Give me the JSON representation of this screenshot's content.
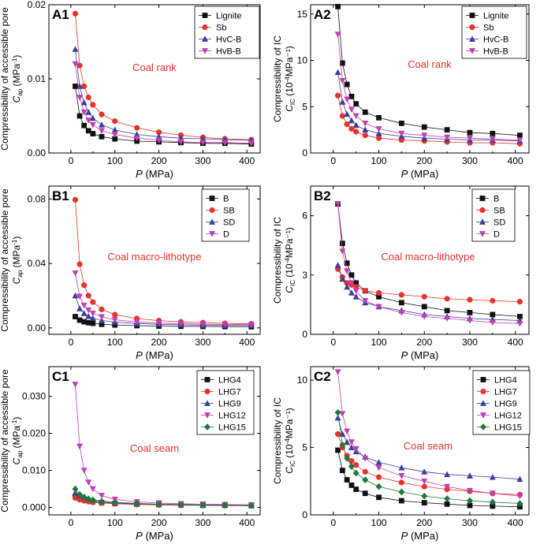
{
  "figure": {
    "colors": {
      "black": "#111111",
      "red": "#e8332a",
      "blue": "#3b3f9e",
      "magenta": "#c13fb5",
      "green": "#1f7a3a",
      "note": "#e8332a"
    },
    "panels": [
      {
        "id": "A1",
        "panel_label": "A1",
        "annotation": "Coal rank",
        "ylabel_line1": "Compressibility of accessible pore",
        "ylabel_sym": "C",
        "ylabel_sub": "ap",
        "ylabel_unit": " (MPa",
        "ylabel_exp": "-1",
        "ylabel_close": ")",
        "xlabel_sym": "P",
        "xlabel_unit": " (MPa)",
        "xlim": [
          -50,
          430
        ],
        "ylim": [
          0,
          0.02
        ],
        "xticks": [
          "0",
          "100",
          "200",
          "300",
          "400"
        ],
        "xtick_values": [
          0,
          100,
          200,
          300,
          400
        ],
        "yticks": [
          "0.00",
          "0.01",
          "0.02"
        ],
        "ytick_values": [
          0,
          0.01,
          0.02
        ]
      },
      {
        "id": "A2",
        "panel_label": "A2",
        "annotation": "Coal rank",
        "ylabel_line1": "Compressibility of IC",
        "ylabel_sym": "C",
        "ylabel_sub": "IC",
        "ylabel_unit": " (10",
        "ylabel_exp": "-4",
        "ylabel_close": "MPa⁻¹)",
        "xlabel_sym": "P",
        "xlabel_unit": " (MPa)",
        "xlim": [
          -50,
          430
        ],
        "ylim": [
          0,
          16
        ],
        "xticks": [
          "0",
          "100",
          "200",
          "300",
          "400"
        ],
        "xtick_values": [
          0,
          100,
          200,
          300,
          400
        ],
        "yticks": [
          "0",
          "5",
          "10",
          "15"
        ],
        "ytick_values": [
          0,
          5,
          10,
          15
        ]
      },
      {
        "id": "B1",
        "panel_label": "B1",
        "annotation": "Coal macro-lithotype",
        "ylabel_line1": "Compressibility of accessible pore",
        "ylabel_sym": "C",
        "ylabel_sub": "ap",
        "ylabel_unit": " (MPa",
        "ylabel_exp": "-1",
        "ylabel_close": ")",
        "xlabel_sym": "P",
        "xlabel_unit": " (MPa)",
        "xlim": [
          -50,
          430
        ],
        "ylim": [
          -0.004,
          0.088
        ],
        "xticks": [
          "0",
          "100",
          "200",
          "300",
          "400"
        ],
        "xtick_values": [
          0,
          100,
          200,
          300,
          400
        ],
        "yticks": [
          "0.00",
          "0.04",
          "0.08"
        ],
        "ytick_values": [
          0,
          0.04,
          0.08
        ]
      },
      {
        "id": "B2",
        "panel_label": "B2",
        "annotation": "Coal macro-lithotype",
        "ylabel_line1": "Compressibility of IC",
        "ylabel_sym": "C",
        "ylabel_sub": "IC",
        "ylabel_unit": " (10",
        "ylabel_exp": "-4",
        "ylabel_close": "MPa⁻¹)",
        "xlabel_sym": "P",
        "xlabel_unit": " (MPa)",
        "xlim": [
          -50,
          430
        ],
        "ylim": [
          0,
          7.5
        ],
        "xticks": [
          "0",
          "100",
          "200",
          "300",
          "400"
        ],
        "xtick_values": [
          0,
          100,
          200,
          300,
          400
        ],
        "yticks": [
          "0",
          "3",
          "6"
        ],
        "ytick_values": [
          0,
          3,
          6
        ]
      },
      {
        "id": "C1",
        "panel_label": "C1",
        "annotation": "Coal seam",
        "ylabel_line1": "Compressibility of accessible pore",
        "ylabel_sym": "C",
        "ylabel_sub": "ap",
        "ylabel_unit": " (MPa",
        "ylabel_exp": "-1",
        "ylabel_close": ")",
        "xlabel_sym": "P",
        "xlabel_unit": " (MPa)",
        "xlim": [
          -50,
          430
        ],
        "ylim": [
          -0.002,
          0.038
        ],
        "xticks": [
          "0",
          "100",
          "200",
          "300",
          "400"
        ],
        "xtick_values": [
          0,
          100,
          200,
          300,
          400
        ],
        "yticks": [
          "0.000",
          "0.010",
          "0.020",
          "0.030"
        ],
        "ytick_values": [
          0,
          0.01,
          0.02,
          0.03
        ]
      },
      {
        "id": "C2",
        "panel_label": "C2",
        "annotation": "Coal seam",
        "ylabel_line1": "Compressibility of IC",
        "ylabel_sym": "C",
        "ylabel_sub": "IC",
        "ylabel_unit": " (10",
        "ylabel_exp": "-4",
        "ylabel_close": "MPa⁻¹)",
        "xlabel_sym": "P",
        "xlabel_unit": " (MPa)",
        "xlim": [
          -50,
          430
        ],
        "ylim": [
          0,
          11
        ],
        "xticks": [
          "0",
          "100",
          "200",
          "300",
          "400"
        ],
        "xtick_values": [
          0,
          100,
          200,
          300,
          400
        ],
        "yticks": [
          "0",
          "5",
          "10"
        ],
        "ytick_values": [
          0,
          5,
          10
        ]
      }
    ]
  },
  "chart_data": [
    {
      "id": "A1",
      "type": "line",
      "title": "",
      "xlabel": "P (MPa)",
      "ylabel": "Compressibility of accessible pore C_ap (MPa^-1)",
      "xlim": [
        -50,
        430
      ],
      "ylim": [
        0,
        0.02
      ],
      "x": [
        10,
        20,
        30,
        40,
        50,
        70,
        100,
        150,
        200,
        250,
        300,
        350,
        410
      ],
      "series": [
        {
          "name": "Lignite",
          "color": "black",
          "marker": "square",
          "values": [
            0.009,
            0.005,
            0.0037,
            0.003,
            0.0026,
            0.0022,
            0.0019,
            0.0016,
            0.0015,
            0.0014,
            0.0013,
            0.0013,
            0.0012
          ]
        },
        {
          "name": "Sb",
          "color": "red",
          "marker": "circle",
          "values": [
            0.0188,
            0.0118,
            0.009,
            0.0075,
            0.0065,
            0.0052,
            0.0043,
            0.0034,
            0.0028,
            0.0024,
            0.0021,
            0.0019,
            0.0018
          ]
        },
        {
          "name": "HvC-B",
          "color": "blue",
          "marker": "triangle-up",
          "values": [
            0.014,
            0.009,
            0.0068,
            0.0055,
            0.0047,
            0.0038,
            0.0031,
            0.0025,
            0.0022,
            0.002,
            0.0019,
            0.0018,
            0.0017
          ]
        },
        {
          "name": "HvB-B",
          "color": "magenta",
          "marker": "triangle-down",
          "values": [
            0.012,
            0.0075,
            0.0055,
            0.0044,
            0.0038,
            0.003,
            0.0025,
            0.002,
            0.0017,
            0.0015,
            0.0014,
            0.0014,
            0.0013
          ]
        }
      ]
    },
    {
      "id": "A2",
      "type": "line",
      "title": "",
      "xlabel": "P (MPa)",
      "ylabel": "Compressibility of IC C_IC (10^-4 MPa^-1)",
      "xlim": [
        -50,
        430
      ],
      "ylim": [
        0,
        16
      ],
      "x": [
        10,
        20,
        30,
        40,
        50,
        70,
        100,
        150,
        200,
        250,
        300,
        350,
        410
      ],
      "series": [
        {
          "name": "Lignite",
          "color": "black",
          "marker": "square",
          "values": [
            15.8,
            9.7,
            7.4,
            6.1,
            5.3,
            4.4,
            3.8,
            3.2,
            2.8,
            2.5,
            2.2,
            2.1,
            1.9
          ]
        },
        {
          "name": "Sb",
          "color": "red",
          "marker": "circle",
          "values": [
            6.2,
            4.0,
            3.1,
            2.6,
            2.3,
            1.9,
            1.6,
            1.4,
            1.3,
            1.2,
            1.1,
            1.1,
            1.0
          ]
        },
        {
          "name": "HvC-B",
          "color": "blue",
          "marker": "triangle-up",
          "values": [
            8.7,
            5.5,
            4.2,
            3.5,
            3.0,
            2.5,
            2.1,
            1.8,
            1.6,
            1.5,
            1.4,
            1.4,
            1.3
          ]
        },
        {
          "name": "HvB-B",
          "color": "magenta",
          "marker": "triangle-down",
          "values": [
            12.8,
            7.8,
            5.8,
            4.7,
            4.0,
            3.2,
            2.6,
            2.1,
            1.9,
            1.7,
            1.6,
            1.5,
            1.4
          ]
        }
      ]
    },
    {
      "id": "B1",
      "type": "line",
      "title": "",
      "xlabel": "P (MPa)",
      "ylabel": "Compressibility of accessible pore C_ap (MPa^-1)",
      "xlim": [
        -50,
        430
      ],
      "ylim": [
        -0.004,
        0.088
      ],
      "x": [
        10,
        20,
        30,
        40,
        50,
        70,
        100,
        150,
        200,
        250,
        300,
        350,
        410
      ],
      "series": [
        {
          "name": "B",
          "color": "black",
          "marker": "square",
          "values": [
            0.007,
            0.0048,
            0.0038,
            0.0032,
            0.0028,
            0.0022,
            0.0018,
            0.0014,
            0.0011,
            0.001,
            0.0009,
            0.0008,
            0.0007
          ]
        },
        {
          "name": "SB",
          "color": "red",
          "marker": "circle",
          "values": [
            0.0795,
            0.0395,
            0.0265,
            0.02,
            0.016,
            0.0115,
            0.0082,
            0.0058,
            0.0045,
            0.0037,
            0.0032,
            0.0028,
            0.0025
          ]
        },
        {
          "name": "SD",
          "color": "blue",
          "marker": "triangle-up",
          "values": [
            0.02,
            0.012,
            0.009,
            0.0072,
            0.006,
            0.0046,
            0.0036,
            0.0027,
            0.0022,
            0.0019,
            0.0017,
            0.0016,
            0.0015
          ]
        },
        {
          "name": "D",
          "color": "magenta",
          "marker": "triangle-down",
          "values": [
            0.034,
            0.0195,
            0.014,
            0.011,
            0.009,
            0.0068,
            0.005,
            0.0037,
            0.003,
            0.0026,
            0.0023,
            0.0021,
            0.002
          ]
        }
      ]
    },
    {
      "id": "B2",
      "type": "line",
      "title": "",
      "xlabel": "P (MPa)",
      "ylabel": "Compressibility of IC C_IC (10^-4 MPa^-1)",
      "xlim": [
        -50,
        430
      ],
      "ylim": [
        0,
        7.5
      ],
      "x": [
        10,
        20,
        30,
        40,
        50,
        70,
        100,
        150,
        200,
        250,
        300,
        350,
        410
      ],
      "series": [
        {
          "name": "B",
          "color": "black",
          "marker": "square",
          "values": [
            6.6,
            4.6,
            3.6,
            3.0,
            2.6,
            2.2,
            1.9,
            1.6,
            1.4,
            1.2,
            1.1,
            1.0,
            0.9
          ]
        },
        {
          "name": "SB",
          "color": "red",
          "marker": "circle",
          "values": [
            3.3,
            2.9,
            2.6,
            2.5,
            2.4,
            2.2,
            2.1,
            2.0,
            1.9,
            1.8,
            1.75,
            1.7,
            1.65
          ]
        },
        {
          "name": "SD",
          "color": "blue",
          "marker": "triangle-up",
          "values": [
            3.5,
            2.8,
            2.4,
            2.1,
            1.9,
            1.6,
            1.4,
            1.2,
            1.0,
            0.9,
            0.8,
            0.75,
            0.7
          ]
        },
        {
          "name": "D",
          "color": "magenta",
          "marker": "triangle-down",
          "values": [
            6.6,
            4.2,
            3.2,
            2.6,
            2.2,
            1.7,
            1.4,
            1.1,
            0.9,
            0.8,
            0.7,
            0.6,
            0.55
          ]
        }
      ]
    },
    {
      "id": "C1",
      "type": "line",
      "title": "",
      "xlabel": "P (MPa)",
      "ylabel": "Compressibility of accessible pore C_ap (MPa^-1)",
      "xlim": [
        -50,
        430
      ],
      "ylim": [
        -0.002,
        0.038
      ],
      "x": [
        10,
        20,
        30,
        40,
        50,
        70,
        100,
        150,
        200,
        250,
        300,
        350,
        410
      ],
      "series": [
        {
          "name": "LHG4",
          "color": "black",
          "marker": "square",
          "values": [
            0.003,
            0.0024,
            0.0021,
            0.0018,
            0.0016,
            0.0013,
            0.0011,
            0.0009,
            0.0008,
            0.0007,
            0.0006,
            0.0006,
            0.0005
          ]
        },
        {
          "name": "LHG7",
          "color": "red",
          "marker": "circle",
          "values": [
            0.0026,
            0.0021,
            0.0018,
            0.0016,
            0.0014,
            0.0012,
            0.001,
            0.0008,
            0.0007,
            0.0006,
            0.0006,
            0.0005,
            0.0005
          ]
        },
        {
          "name": "LHG9",
          "color": "blue",
          "marker": "triangle-up",
          "values": [
            0.004,
            0.0033,
            0.0028,
            0.0024,
            0.0021,
            0.0017,
            0.0014,
            0.0011,
            0.0009,
            0.0008,
            0.0007,
            0.0007,
            0.0006
          ]
        },
        {
          "name": "LHG12",
          "color": "magenta",
          "marker": "triangle-down",
          "values": [
            0.0332,
            0.0165,
            0.01,
            0.0068,
            0.005,
            0.0032,
            0.0022,
            0.0015,
            0.0012,
            0.001,
            0.0009,
            0.0008,
            0.0007
          ]
        },
        {
          "name": "LHG15",
          "color": "green",
          "marker": "diamond",
          "values": [
            0.005,
            0.0035,
            0.0028,
            0.0023,
            0.002,
            0.0016,
            0.0013,
            0.001,
            0.0008,
            0.0007,
            0.0006,
            0.0006,
            0.0005
          ]
        }
      ]
    },
    {
      "id": "C2",
      "type": "line",
      "title": "",
      "xlabel": "P (MPa)",
      "ylabel": "Compressibility of IC C_IC (10^-4 MPa^-1)",
      "xlim": [
        -50,
        430
      ],
      "ylim": [
        0,
        11
      ],
      "x": [
        10,
        20,
        30,
        40,
        50,
        70,
        100,
        150,
        200,
        250,
        300,
        350,
        410
      ],
      "series": [
        {
          "name": "LHG4",
          "color": "black",
          "marker": "square",
          "values": [
            4.8,
            3.3,
            2.6,
            2.2,
            1.9,
            1.6,
            1.3,
            1.05,
            0.9,
            0.8,
            0.7,
            0.65,
            0.6
          ]
        },
        {
          "name": "LHG7",
          "color": "red",
          "marker": "circle",
          "values": [
            6.0,
            5.0,
            4.4,
            4.0,
            3.7,
            3.2,
            2.8,
            2.4,
            2.1,
            1.9,
            1.75,
            1.6,
            1.5
          ]
        },
        {
          "name": "LHG9",
          "color": "blue",
          "marker": "triangle-up",
          "values": [
            7.2,
            6.0,
            5.4,
            5.0,
            4.7,
            4.3,
            3.9,
            3.5,
            3.2,
            3.0,
            2.9,
            2.8,
            2.65
          ]
        },
        {
          "name": "LHG12",
          "color": "magenta",
          "marker": "triangle-down",
          "values": [
            10.6,
            7.5,
            6.2,
            5.4,
            4.9,
            4.2,
            3.5,
            2.9,
            2.5,
            2.1,
            1.8,
            1.6,
            1.4
          ]
        },
        {
          "name": "LHG15",
          "color": "green",
          "marker": "diamond",
          "values": [
            7.6,
            5.2,
            4.2,
            3.6,
            3.1,
            2.6,
            2.1,
            1.7,
            1.4,
            1.2,
            1.05,
            0.95,
            0.85
          ]
        }
      ]
    }
  ]
}
